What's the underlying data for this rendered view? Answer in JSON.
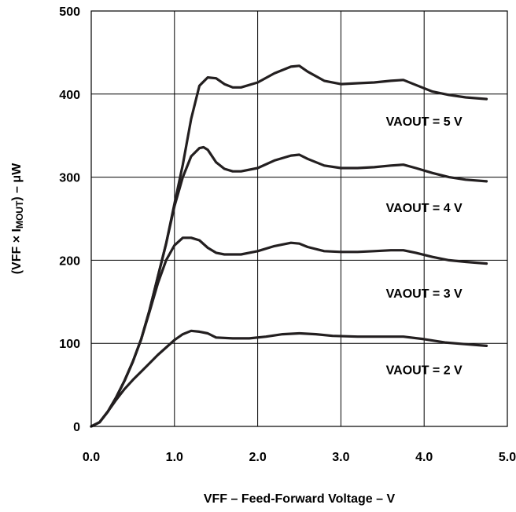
{
  "chart_data": {
    "type": "line",
    "xlabel": "VFF – Feed-Forward Voltage – V",
    "ylabel": {
      "prefix": "(VFF × I",
      "subscript": "MOUT",
      "suffix": ") – μW"
    },
    "xlim": [
      0,
      5
    ],
    "ylim": [
      0,
      500
    ],
    "x_ticks": [
      0,
      1,
      2,
      3,
      4,
      5
    ],
    "x_tick_labels": [
      "0.0",
      "1.0",
      "2.0",
      "3.0",
      "4.0",
      "5.0"
    ],
    "y_ticks": [
      0,
      100,
      200,
      300,
      400,
      500
    ],
    "y_tick_labels": [
      "0",
      "100",
      "200",
      "300",
      "400",
      "500"
    ],
    "grid": true,
    "legend": "none",
    "line_color": "#231f20",
    "series": [
      {
        "name": "VAOUT = 5 V",
        "label_at": [
          4.0,
          362
        ],
        "x": [
          0.0,
          0.1,
          0.2,
          0.3,
          0.4,
          0.5,
          0.6,
          0.7,
          0.8,
          0.9,
          1.0,
          1.1,
          1.2,
          1.3,
          1.4,
          1.5,
          1.6,
          1.7,
          1.8,
          2.0,
          2.2,
          2.4,
          2.5,
          2.6,
          2.8,
          3.0,
          3.2,
          3.4,
          3.6,
          3.75,
          3.9,
          4.1,
          4.3,
          4.5,
          4.75
        ],
        "y": [
          0,
          5,
          18,
          35,
          55,
          78,
          105,
          140,
          180,
          220,
          268,
          315,
          370,
          410,
          420,
          419,
          412,
          408,
          408,
          414,
          425,
          433,
          434,
          427,
          416,
          412,
          413,
          414,
          416,
          417,
          411,
          403,
          399,
          396,
          394
        ]
      },
      {
        "name": "VAOUT = 4 V",
        "label_at": [
          4.0,
          258
        ],
        "x": [
          0.0,
          0.1,
          0.2,
          0.3,
          0.4,
          0.5,
          0.6,
          0.7,
          0.8,
          0.9,
          1.0,
          1.1,
          1.2,
          1.3,
          1.35,
          1.4,
          1.5,
          1.6,
          1.7,
          1.8,
          2.0,
          2.2,
          2.4,
          2.5,
          2.6,
          2.8,
          3.0,
          3.2,
          3.4,
          3.6,
          3.75,
          3.9,
          4.1,
          4.3,
          4.5,
          4.75
        ],
        "y": [
          0,
          5,
          18,
          35,
          55,
          78,
          105,
          140,
          180,
          220,
          265,
          300,
          325,
          335,
          336,
          333,
          318,
          310,
          307,
          307,
          311,
          320,
          326,
          327,
          322,
          314,
          311,
          311,
          312,
          314,
          315,
          311,
          305,
          300,
          297,
          295
        ]
      },
      {
        "name": "VAOUT = 3 V",
        "label_at": [
          4.0,
          155
        ],
        "x": [
          0.0,
          0.1,
          0.2,
          0.3,
          0.4,
          0.5,
          0.6,
          0.7,
          0.8,
          0.9,
          1.0,
          1.1,
          1.2,
          1.3,
          1.4,
          1.5,
          1.6,
          1.8,
          2.0,
          2.2,
          2.4,
          2.5,
          2.6,
          2.8,
          3.0,
          3.2,
          3.4,
          3.6,
          3.75,
          3.9,
          4.1,
          4.3,
          4.5,
          4.75
        ],
        "y": [
          0,
          5,
          18,
          35,
          55,
          78,
          105,
          138,
          172,
          200,
          218,
          227,
          227,
          224,
          215,
          209,
          207,
          207,
          211,
          217,
          221,
          220,
          216,
          211,
          210,
          210,
          211,
          212,
          212,
          209,
          204,
          200,
          198,
          196
        ]
      },
      {
        "name": "VAOUT = 2 V",
        "label_at": [
          4.0,
          63
        ],
        "x": [
          0.0,
          0.1,
          0.2,
          0.3,
          0.4,
          0.5,
          0.6,
          0.7,
          0.8,
          0.9,
          1.0,
          1.1,
          1.2,
          1.3,
          1.4,
          1.5,
          1.7,
          1.9,
          2.1,
          2.3,
          2.5,
          2.7,
          2.9,
          3.2,
          3.5,
          3.75,
          4.0,
          4.25,
          4.5,
          4.75
        ],
        "y": [
          0,
          5,
          18,
          32,
          45,
          56,
          66,
          76,
          86,
          95,
          104,
          111,
          115,
          114,
          112,
          107,
          106,
          106,
          108,
          111,
          112,
          111,
          109,
          108,
          108,
          108,
          105,
          101,
          99,
          97
        ]
      }
    ]
  }
}
